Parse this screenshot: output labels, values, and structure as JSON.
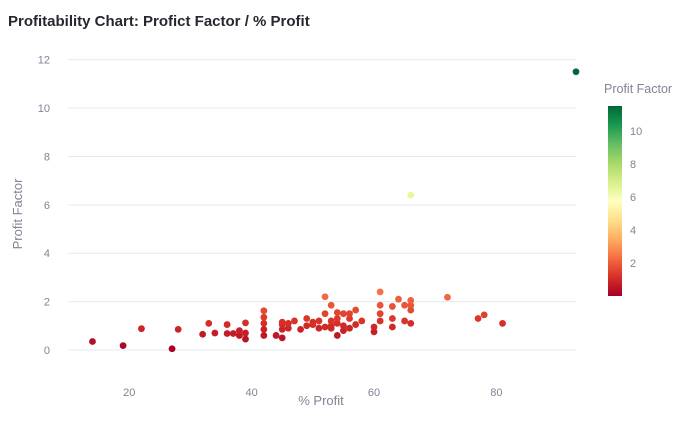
{
  "chart_data": {
    "type": "scatter",
    "title": "Profitability Chart: Profict Factor / % Profit",
    "xlabel": "% Profit",
    "ylabel": "Profit Factor",
    "xlim": [
      10,
      93
    ],
    "ylim": [
      -1.2,
      12.4
    ],
    "x_ticks": [
      20,
      40,
      60,
      80
    ],
    "y_ticks": [
      0,
      2,
      4,
      6,
      8,
      10,
      12
    ],
    "grid": "horizontal",
    "colorscale": {
      "title": "Profit Factor",
      "range": [
        0,
        11.5
      ],
      "ticks": [
        2,
        4,
        6,
        8,
        10
      ],
      "colors": [
        "#a50026",
        "#d73027",
        "#f46d43",
        "#fdae61",
        "#fee08b",
        "#ffffbf",
        "#d9ef8b",
        "#a6d96a",
        "#66bd63",
        "#1a9850",
        "#006837"
      ]
    },
    "points": [
      {
        "x": 14,
        "y": 0.35
      },
      {
        "x": 19,
        "y": 0.18
      },
      {
        "x": 22,
        "y": 0.88
      },
      {
        "x": 27,
        "y": 0.05
      },
      {
        "x": 28,
        "y": 0.85
      },
      {
        "x": 32,
        "y": 0.65
      },
      {
        "x": 33,
        "y": 1.1
      },
      {
        "x": 34,
        "y": 0.7
      },
      {
        "x": 36,
        "y": 0.68
      },
      {
        "x": 36,
        "y": 1.05
      },
      {
        "x": 37,
        "y": 0.68
      },
      {
        "x": 38,
        "y": 0.6
      },
      {
        "x": 38,
        "y": 0.8
      },
      {
        "x": 39,
        "y": 0.45
      },
      {
        "x": 39,
        "y": 0.7
      },
      {
        "x": 39,
        "y": 1.12
      },
      {
        "x": 42,
        "y": 0.6
      },
      {
        "x": 42,
        "y": 0.85
      },
      {
        "x": 42,
        "y": 1.1
      },
      {
        "x": 42,
        "y": 1.35
      },
      {
        "x": 42,
        "y": 1.62
      },
      {
        "x": 44,
        "y": 0.6
      },
      {
        "x": 45,
        "y": 0.5
      },
      {
        "x": 45,
        "y": 0.85
      },
      {
        "x": 45,
        "y": 1.05
      },
      {
        "x": 45,
        "y": 1.15
      },
      {
        "x": 46,
        "y": 0.9
      },
      {
        "x": 46,
        "y": 1.1
      },
      {
        "x": 47,
        "y": 1.2
      },
      {
        "x": 48,
        "y": 0.85
      },
      {
        "x": 49,
        "y": 1.0
      },
      {
        "x": 49,
        "y": 1.3
      },
      {
        "x": 50,
        "y": 1.05
      },
      {
        "x": 50,
        "y": 1.15
      },
      {
        "x": 51,
        "y": 0.9
      },
      {
        "x": 51,
        "y": 1.2
      },
      {
        "x": 52,
        "y": 0.95
      },
      {
        "x": 52,
        "y": 1.5
      },
      {
        "x": 52,
        "y": 2.2
      },
      {
        "x": 53,
        "y": 0.9
      },
      {
        "x": 53,
        "y": 1.0
      },
      {
        "x": 53,
        "y": 1.2
      },
      {
        "x": 53,
        "y": 1.85
      },
      {
        "x": 54,
        "y": 0.6
      },
      {
        "x": 54,
        "y": 1.1
      },
      {
        "x": 54,
        "y": 1.3
      },
      {
        "x": 54,
        "y": 1.55
      },
      {
        "x": 55,
        "y": 0.8
      },
      {
        "x": 55,
        "y": 1.0
      },
      {
        "x": 55,
        "y": 1.5
      },
      {
        "x": 56,
        "y": 0.9
      },
      {
        "x": 56,
        "y": 1.3
      },
      {
        "x": 56,
        "y": 1.5
      },
      {
        "x": 57,
        "y": 1.05
      },
      {
        "x": 57,
        "y": 1.65
      },
      {
        "x": 58,
        "y": 1.2
      },
      {
        "x": 60,
        "y": 0.75
      },
      {
        "x": 60,
        "y": 0.95
      },
      {
        "x": 61,
        "y": 1.2
      },
      {
        "x": 61,
        "y": 1.5
      },
      {
        "x": 61,
        "y": 1.85
      },
      {
        "x": 61,
        "y": 2.4
      },
      {
        "x": 63,
        "y": 0.95
      },
      {
        "x": 63,
        "y": 1.3
      },
      {
        "x": 63,
        "y": 1.8
      },
      {
        "x": 64,
        "y": 2.1
      },
      {
        "x": 65,
        "y": 1.2
      },
      {
        "x": 65,
        "y": 1.85
      },
      {
        "x": 66,
        "y": 1.1
      },
      {
        "x": 66,
        "y": 1.65
      },
      {
        "x": 66,
        "y": 1.85
      },
      {
        "x": 66,
        "y": 2.05
      },
      {
        "x": 66,
        "y": 6.4
      },
      {
        "x": 72,
        "y": 2.18
      },
      {
        "x": 77,
        "y": 1.3
      },
      {
        "x": 78,
        "y": 1.45
      },
      {
        "x": 81,
        "y": 1.1
      },
      {
        "x": 93,
        "y": 11.5
      }
    ]
  }
}
